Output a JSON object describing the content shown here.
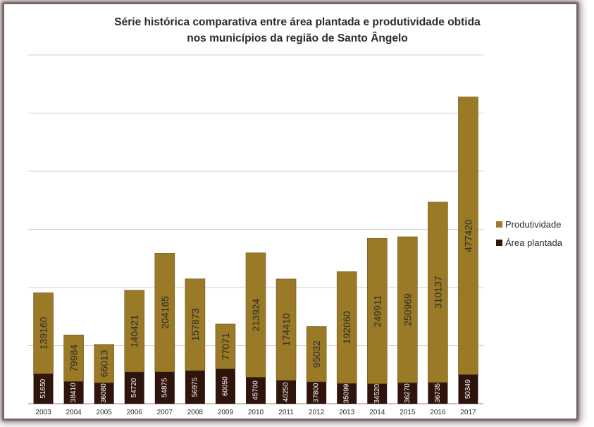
{
  "chart_data": {
    "type": "bar",
    "stacked": true,
    "title_lines": [
      "Série histórica comparativa entre área plantada e produtividade obtida",
      "nos municípios da região de Santo Ângelo"
    ],
    "categories": [
      "2003",
      "2004",
      "2005",
      "2006",
      "2007",
      "2008",
      "2009",
      "2010",
      "2011",
      "2012",
      "2013",
      "2014",
      "2015",
      "2016",
      "2017"
    ],
    "series": [
      {
        "name": "Área plantada",
        "color": "#2e140b",
        "values": [
          51650,
          38410,
          36080,
          54720,
          54875,
          56975,
          60050,
          45700,
          40250,
          37800,
          35099,
          34520,
          36270,
          36735,
          50349
        ]
      },
      {
        "name": "Produtividade",
        "color": "#9a7a26",
        "values": [
          139160,
          79984,
          66013,
          140421,
          204165,
          157873,
          77071,
          213924,
          174410,
          95032,
          192060,
          249911,
          250969,
          310137,
          477420
        ]
      }
    ],
    "ylim": [
      0,
      600000
    ],
    "grid": true,
    "legend_position": "right"
  }
}
